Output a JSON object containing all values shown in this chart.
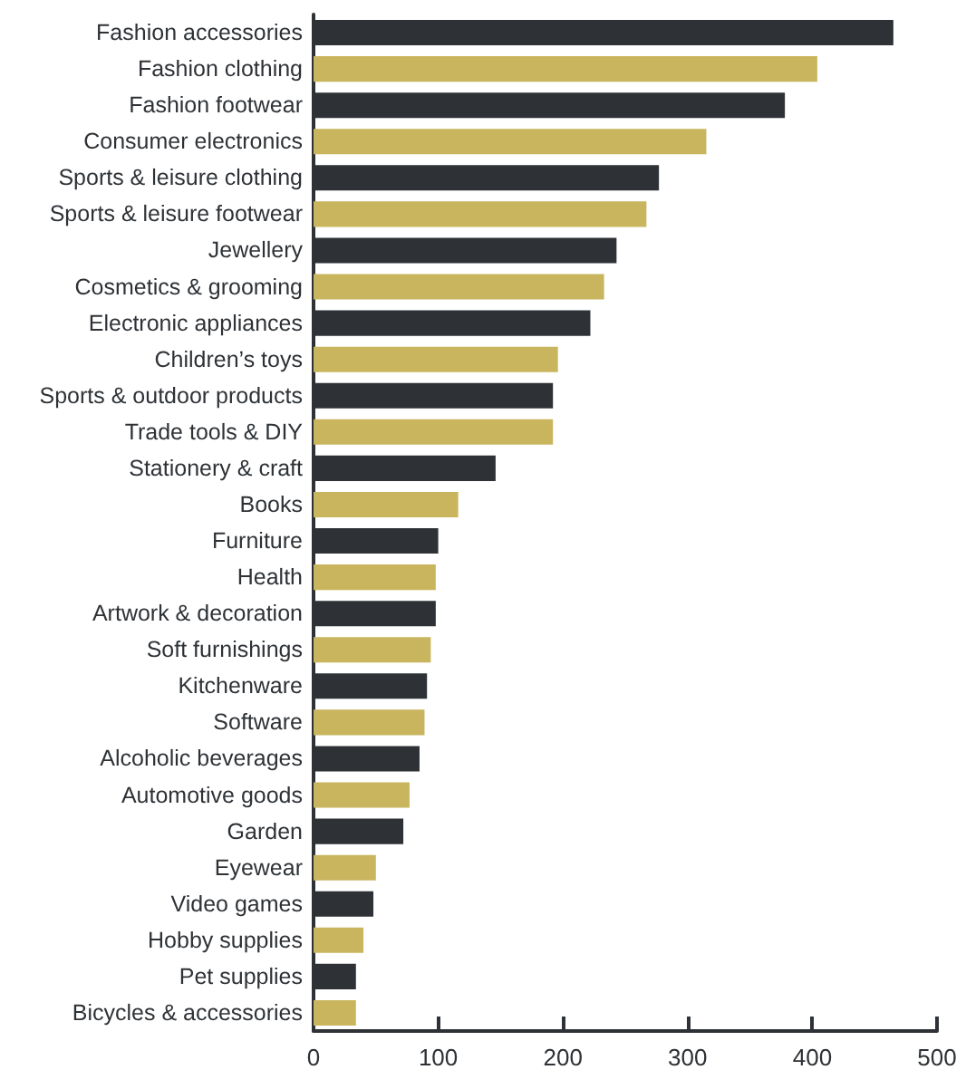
{
  "chart_data": {
    "type": "bar",
    "orientation": "horizontal",
    "categories": [
      "Fashion accessories",
      "Fashion clothing",
      "Fashion footwear",
      "Consumer electronics",
      "Sports & leisure clothing",
      "Sports & leisure footwear",
      "Jewellery",
      "Cosmetics & grooming",
      "Electronic appliances",
      "Children’s toys",
      "Sports & outdoor products",
      "Trade tools & DIY",
      "Stationery & craft",
      "Books",
      "Furniture",
      "Health",
      "Artwork & decoration",
      "Soft furnishings",
      "Kitchenware",
      "Software",
      "Alcoholic beverages",
      "Automotive goods",
      "Garden",
      "Eyewear",
      "Video games",
      "Hobby supplies",
      "Pet supplies",
      "Bicycles & accessories"
    ],
    "values": [
      465,
      404,
      378,
      315,
      277,
      267,
      243,
      233,
      222,
      196,
      192,
      192,
      146,
      116,
      100,
      98,
      98,
      94,
      91,
      89,
      85,
      77,
      72,
      50,
      48,
      40,
      34,
      34
    ],
    "colors": [
      "#2e3236",
      "#c8b55e",
      "#2e3236",
      "#c8b55e",
      "#2e3236",
      "#c8b55e",
      "#2e3236",
      "#c8b55e",
      "#2e3236",
      "#c8b55e",
      "#2e3236",
      "#c8b55e",
      "#2e3236",
      "#c8b55e",
      "#2e3236",
      "#c8b55e",
      "#2e3236",
      "#c8b55e",
      "#2e3236",
      "#c8b55e",
      "#2e3236",
      "#c8b55e",
      "#2e3236",
      "#c8b55e",
      "#2e3236",
      "#c8b55e",
      "#2e3236",
      "#c8b55e"
    ],
    "xlim": [
      0,
      500
    ],
    "xticks": [
      0,
      100,
      200,
      300,
      400,
      500
    ],
    "grid": false
  }
}
